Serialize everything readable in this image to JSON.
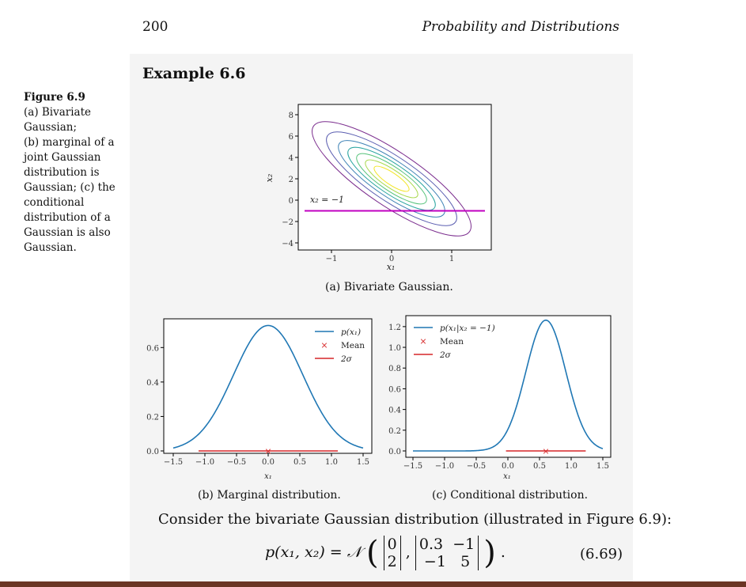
{
  "header": {
    "page_number": "200",
    "running_title": "Probability and Distributions"
  },
  "example": {
    "title": "Example 6.6"
  },
  "figure_caption": {
    "label": "Figure 6.9",
    "lines": [
      "(a) Bivariate",
      "Gaussian;",
      "(b) marginal of a",
      "joint Gaussian",
      "distribution is",
      "Gaussian; (c) the",
      "conditional",
      "distribution of a",
      "Gaussian is also",
      "Gaussian."
    ]
  },
  "subcaptions": {
    "a": "(a) Bivariate Gaussian.",
    "b": "(b) Marginal distribution.",
    "c": "(c) Conditional distribution."
  },
  "body_text": "Consider the bivariate Gaussian distribution (illustrated in Figure 6.9):",
  "equation": {
    "lhs": "p(x₁, x₂) = 𝒩",
    "mean": [
      "0",
      "2"
    ],
    "cov": [
      [
        "0.3",
        "−1"
      ],
      [
        "−1",
        "5"
      ]
    ],
    "number": "(6.69)"
  },
  "chart_data": [
    {
      "type": "contour",
      "xlabel": "x₁",
      "ylabel": "x₂",
      "xticks": [
        "−1",
        "0",
        "1"
      ],
      "yticks": [
        "−4",
        "−2",
        "0",
        "2",
        "4",
        "6",
        "8"
      ],
      "mean": [
        0,
        2
      ],
      "cov": [
        [
          0.3,
          -1
        ],
        [
          -1,
          5
        ]
      ],
      "annotation": "x₂ = −1",
      "line_y": -1,
      "colors": {
        "line": "#c000c0"
      }
    },
    {
      "type": "line",
      "xlabel": "x₁",
      "xticks": [
        "−1.5",
        "−1.0",
        "−0.5",
        "0.0",
        "0.5",
        "1.0",
        "1.5"
      ],
      "yticks": [
        "0.0",
        "0.2",
        "0.4",
        "0.6"
      ],
      "xlim": [
        -1.5,
        1.5
      ],
      "ylim": [
        0,
        0.73
      ],
      "series": [
        {
          "name": "p(x₁)",
          "mean": 0,
          "sd": 0.548
        }
      ],
      "legend": [
        "p(x₁)",
        "Mean",
        "2σ"
      ],
      "mean_marker": 0,
      "two_sigma": [
        -1.1,
        1.1
      ],
      "colors": {
        "curve": "#1f77b4",
        "mean": "#d62728",
        "sigma": "#d62728"
      }
    },
    {
      "type": "line",
      "xlabel": "x₁",
      "xticks": [
        "−1.5",
        "−1.0",
        "−0.5",
        "0.0",
        "0.5",
        "1.0",
        "1.5"
      ],
      "yticks": [
        "0.0",
        "0.2",
        "0.4",
        "0.6",
        "0.8",
        "1.0",
        "1.2"
      ],
      "xlim": [
        -1.5,
        1.5
      ],
      "ylim": [
        0,
        1.26
      ],
      "series": [
        {
          "name": "p(x₁|x₂ = −1)",
          "mean": 0.6,
          "sd": 0.316
        }
      ],
      "legend": [
        "p(x₁|x₂ = −1)",
        "Mean",
        "2σ"
      ],
      "mean_marker": 0.6,
      "two_sigma": [
        -0.03,
        1.23
      ],
      "colors": {
        "curve": "#1f77b4",
        "mean": "#d62728",
        "sigma": "#d62728"
      }
    }
  ]
}
